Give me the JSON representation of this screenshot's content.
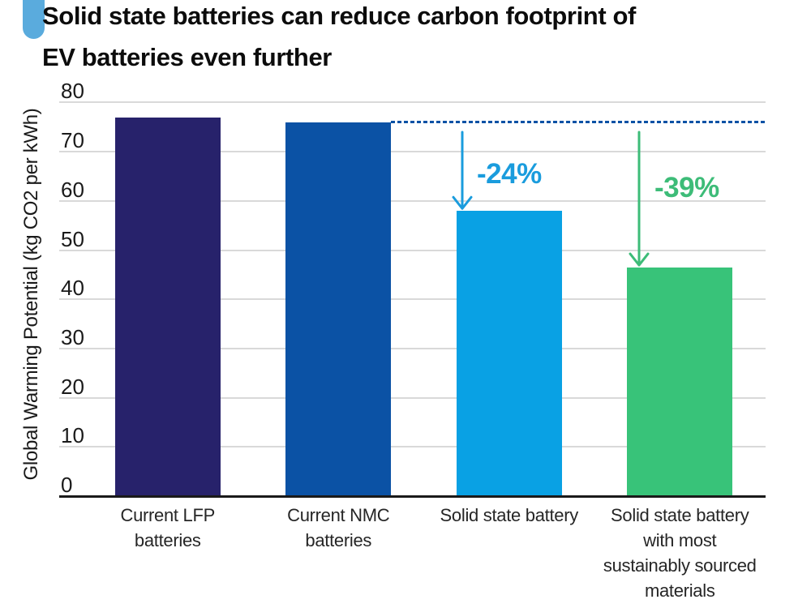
{
  "title": {
    "line1": "Solid state batteries can reduce carbon footprint of",
    "line2": "EV batteries even further"
  },
  "accent_color": "#5aabdd",
  "chart_data": {
    "type": "bar",
    "title": "Solid state batteries can reduce carbon footprint of EV batteries even further",
    "xlabel": "",
    "ylabel": "Global Warming Potential (kg CO2 per kWh)",
    "ylim": [
      0,
      80
    ],
    "ytick_step": 10,
    "ytick_labels": [
      "0",
      "10",
      "20",
      "30",
      "40",
      "50",
      "60",
      "70",
      "80"
    ],
    "grid": "horizontal",
    "legend": "none",
    "categories": [
      "Current LFP batteries",
      "Current NMC batteries",
      "Solid state battery",
      "Solid state battery with most sustainably sourced materials"
    ],
    "category_lines": [
      [
        "Current LFP",
        "batteries"
      ],
      [
        "Current NMC",
        "batteries"
      ],
      [
        "Solid state battery"
      ],
      [
        "Solid state battery",
        "with most",
        "sustainably sourced",
        "materials"
      ]
    ],
    "values": [
      77,
      76,
      58,
      46.5
    ],
    "bar_colors": [
      "#27226b",
      "#0b52a5",
      "#09a1e4",
      "#38c379"
    ],
    "reference_line": {
      "from_category_index": 1,
      "value": 76,
      "style": "dashed",
      "color": "#0b52a5"
    },
    "annotations": [
      {
        "label": "-24%",
        "target_index": 2,
        "color": "#1a9cdd"
      },
      {
        "label": "-39%",
        "target_index": 3,
        "color": "#3dbc78"
      }
    ],
    "gridline_color": "#d9d9d9",
    "axis_color": "#1a1a1a"
  }
}
